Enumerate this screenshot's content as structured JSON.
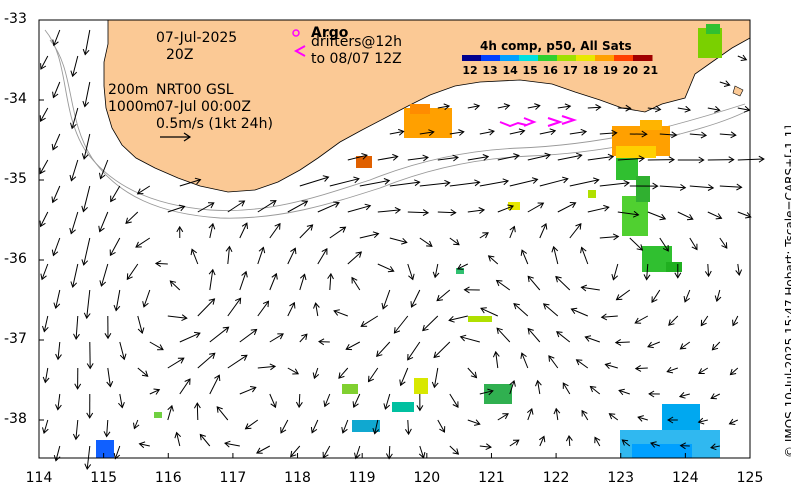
{
  "map": {
    "date": "07-Jul-2025",
    "time": "20Z",
    "depth_label_1": "200m",
    "depth_label_2": "1000m",
    "product": "NRT00 GSL",
    "product_time": "07-Jul 00:00Z",
    "scale_text": "0.5m/s (1kt 24h)",
    "argo_label": "Argo",
    "drifters_label": "drifters@12h",
    "drifters_to": "to 08/07 12Z",
    "colorbar_title": "4h comp, p50, All Sats",
    "colorbar_ticks": [
      "12",
      "13",
      "14",
      "15",
      "16",
      "17",
      "18",
      "19",
      "20",
      "21"
    ],
    "colorbar_colors": [
      "#00008f",
      "#0040ff",
      "#00a0ff",
      "#00e0e0",
      "#30d030",
      "#a0e000",
      "#e8e800",
      "#ffa000",
      "#ff4000",
      "#a00000"
    ],
    "x_ticks": [
      "114",
      "115",
      "116",
      "117",
      "118",
      "119",
      "120",
      "121",
      "122",
      "123",
      "124",
      "125"
    ],
    "y_ticks": [
      "-33",
      "-34",
      "-35",
      "-36",
      "-37",
      "-38"
    ],
    "credit": "© IMOS 10-Jul-2025 15:47 Hobart; Tscale=CARS+[-1 1]",
    "colors": {
      "land": "#fbc995",
      "ocean": "#ffffff",
      "arrow": "#000000",
      "argo": "#ff00ff"
    }
  }
}
